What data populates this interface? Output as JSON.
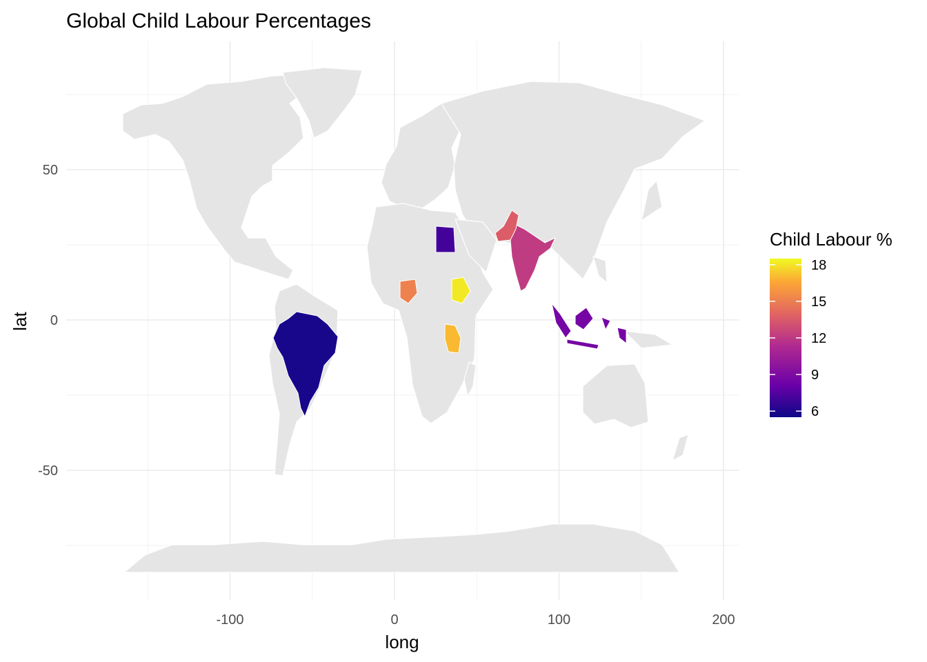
{
  "chart_data": {
    "type": "map",
    "title": "Global Child Labour Percentages",
    "xlabel": "long",
    "ylabel": "lat",
    "xlim": [
      -180,
      210
    ],
    "ylim": [
      -90,
      90
    ],
    "x_ticks": [
      -100,
      0,
      100,
      200
    ],
    "y_ticks": [
      -50,
      0,
      50
    ],
    "grid": true,
    "legend": {
      "title": "Child Labour %",
      "position": "right",
      "ticks": [
        18,
        15,
        12,
        9,
        6
      ],
      "range": [
        5.5,
        18.5
      ],
      "palette": [
        "#0d0887",
        "#6a00a8",
        "#b12a90",
        "#e16462",
        "#fca636",
        "#f0f921"
      ]
    },
    "base_fill": "#e5e5e5",
    "border_color": "#ffffff",
    "highlighted": [
      {
        "country": "Brazil",
        "value": 5.8
      },
      {
        "country": "Egypt",
        "value": 7.0
      },
      {
        "country": "Indonesia",
        "value": 8.5
      },
      {
        "country": "India",
        "value": 11.5
      },
      {
        "country": "Pakistan",
        "value": 13.0
      },
      {
        "country": "Nigeria",
        "value": 14.5
      },
      {
        "country": "Tanzania",
        "value": 16.5
      },
      {
        "country": "Ethiopia",
        "value": 18.0
      }
    ]
  }
}
